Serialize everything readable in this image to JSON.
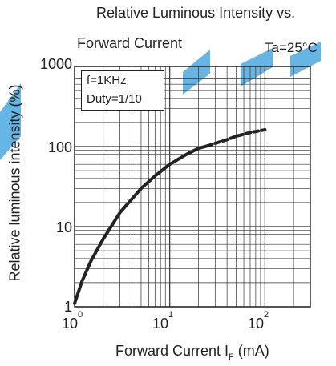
{
  "chart_data": {
    "type": "line",
    "title_line1": "Relative Luminous Intensity vs.",
    "title_line2": "Forward Current",
    "condition": "Ta=25°C",
    "annotation_freq": "f=1KHz",
    "annotation_duty": "Duty=1/10",
    "ylabel": "Relative luminous intensity (%)",
    "xlabel_main": "Forward Current  I",
    "xlabel_sub": "F",
    "xlabel_unit": " (mA)",
    "xscale": "log",
    "yscale": "log",
    "xlim": [
      1,
      300
    ],
    "ylim": [
      1,
      1000
    ],
    "grid": true,
    "ytick_labels": [
      "1000",
      "100",
      "10",
      "1"
    ],
    "xtick_labels": [
      {
        "base": "10",
        "exp": "0"
      },
      {
        "base": "10",
        "exp": "1"
      },
      {
        "base": "10",
        "exp": "2"
      }
    ],
    "series": [
      {
        "style": "solid",
        "x": [
          1,
          1.2,
          1.5,
          2,
          3,
          5,
          7,
          10,
          15,
          20,
          25
        ],
        "y": [
          1.1,
          2.1,
          3.8,
          7,
          15,
          30,
          43,
          60,
          80,
          95,
          102
        ]
      },
      {
        "style": "dashed",
        "x": [
          25,
          30,
          40,
          50,
          70,
          100
        ],
        "y": [
          102,
          110,
          122,
          135,
          150,
          162
        ]
      }
    ],
    "color": "#222222"
  },
  "watermark": {
    "color": "#4aa8e0"
  }
}
